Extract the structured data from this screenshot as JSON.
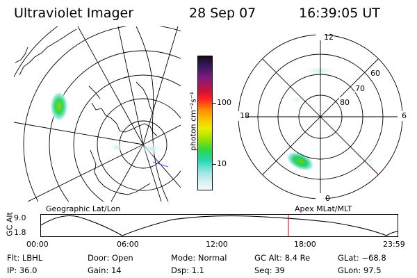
{
  "header": {
    "title": "Ultraviolet Imager",
    "date": "28 Sep 07",
    "time": "16:39:05 UT"
  },
  "colorbar": {
    "label": "photon cm⁻²s⁻¹",
    "ticks": [
      "100",
      "10"
    ]
  },
  "left_panel": {
    "label": "Geographic Lat/Lon"
  },
  "right_panel": {
    "label": "Apex MLat/MLT",
    "mlt_labels": {
      "top": "12",
      "right": "6",
      "bottom": "0",
      "left": "18"
    },
    "lat_labels": [
      "60",
      "70",
      "80"
    ]
  },
  "timeline": {
    "ylabel": "GC Alt",
    "y_ticks": [
      "9.0",
      "1.8"
    ],
    "x_ticks": [
      "00:00",
      "06:00",
      "12:00",
      "18:00",
      "23:59"
    ],
    "current_time_fraction": 0.694
  },
  "status": {
    "filter": "Flt: LBHL",
    "ip": "IP: 36.0",
    "door": "Door: Open",
    "gain": "Gain: 14",
    "mode": "Mode: Normal",
    "dsp": "Dsp:    1.1",
    "gc_alt": "GC Alt: 8.4 Re",
    "seq": "Seq: 39",
    "glat": "GLat:  −68.8",
    "glon": "GLon:  97.5"
  },
  "colors": {
    "accent_line": "#cc0000",
    "gridline": "#000000"
  }
}
